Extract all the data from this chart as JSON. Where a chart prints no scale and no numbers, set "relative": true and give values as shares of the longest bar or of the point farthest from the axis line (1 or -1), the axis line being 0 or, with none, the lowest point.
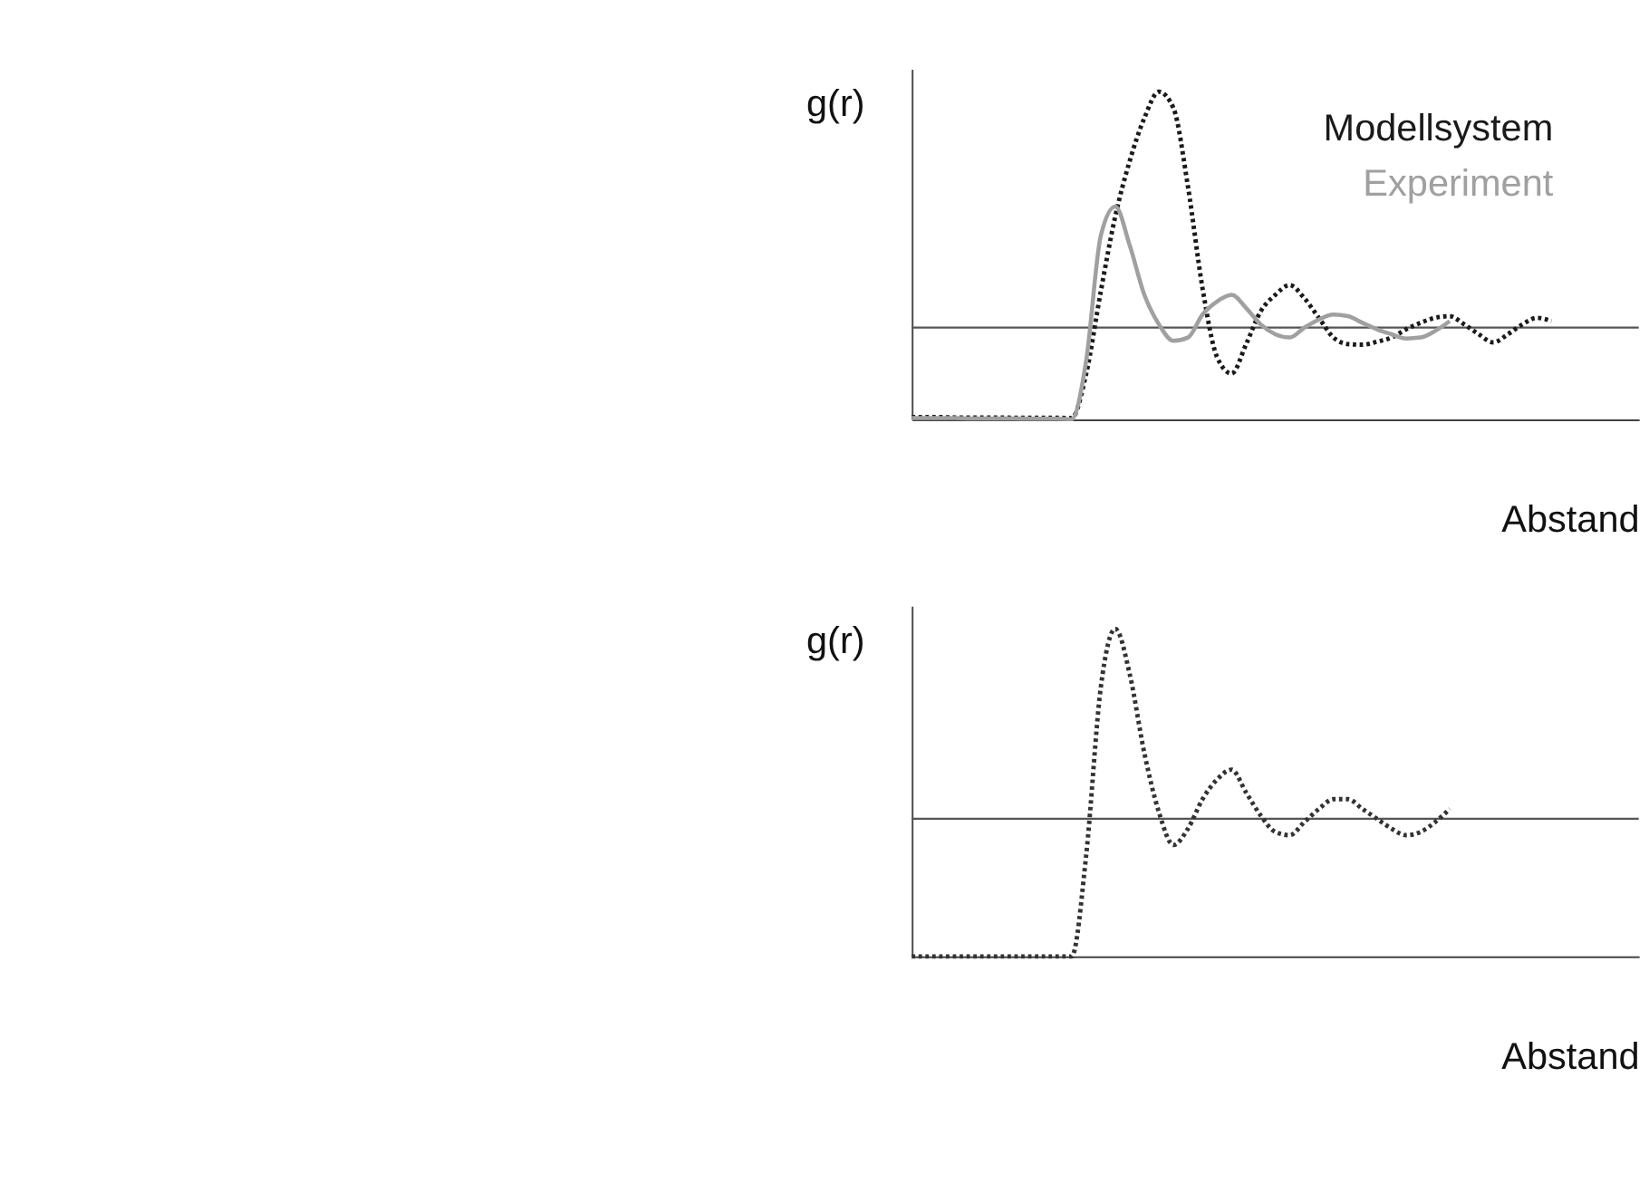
{
  "chart_data": [
    {
      "type": "line",
      "ylabel": "g(r)",
      "xlabel": "Abstand",
      "relative": true,
      "tick_labels": false,
      "grid": false,
      "marker": "none",
      "categories": [
        null,
        null,
        null,
        null,
        null,
        null,
        null,
        null,
        null,
        null,
        null,
        null,
        null,
        null,
        null,
        null,
        null,
        null,
        null,
        null,
        null,
        null,
        null,
        null,
        null,
        null,
        null,
        null,
        null,
        null,
        null,
        null,
        null,
        null,
        null,
        null,
        null,
        null,
        null,
        null,
        null,
        null,
        null,
        null,
        null,
        null,
        null,
        null,
        null,
        null,
        null
      ],
      "ref_lines": [
        {
          "axis": "y",
          "value": 0.28,
          "color": "#555555"
        }
      ],
      "series": [
        {
          "name": "Modellsystem",
          "color": "#1a1a1a",
          "line_style": "dotted",
          "values": [
            0.007,
            0.007,
            0.007,
            0.006,
            0.006,
            0.006,
            0.006,
            0.005,
            0.005,
            0.005,
            0.005,
            0.004,
            0.14,
            0.39,
            0.62,
            0.79,
            0.92,
            1.0,
            0.95,
            0.71,
            0.4,
            0.19,
            0.14,
            0.23,
            0.33,
            0.38,
            0.41,
            0.37,
            0.31,
            0.25,
            0.23,
            0.228,
            0.237,
            0.25,
            0.275,
            0.295,
            0.31,
            0.315,
            0.29,
            0.26,
            0.235,
            0.26,
            0.29,
            0.31,
            0.3,
            null,
            null,
            null,
            null,
            null,
            null
          ]
        },
        {
          "name": "Experiment",
          "color": "#a0a0a0",
          "line_style": "solid",
          "values": [
            0.004,
            0.004,
            0.004,
            0.004,
            0.003,
            0.003,
            0.003,
            0.003,
            0.002,
            0.002,
            0.002,
            0.001,
            0.18,
            0.56,
            0.65,
            0.53,
            0.38,
            0.29,
            0.24,
            0.25,
            0.32,
            0.36,
            0.38,
            0.34,
            0.29,
            0.26,
            0.25,
            0.28,
            0.305,
            0.32,
            0.315,
            0.295,
            0.275,
            0.26,
            0.247,
            0.25,
            0.27,
            0.3,
            null,
            null,
            null,
            null,
            null,
            null,
            null,
            null,
            null,
            null,
            null,
            null,
            null
          ]
        }
      ]
    },
    {
      "type": "line",
      "ylabel": "g(r)",
      "xlabel": "Abstand",
      "relative": true,
      "tick_labels": false,
      "grid": false,
      "marker": "none",
      "categories": [
        null,
        null,
        null,
        null,
        null,
        null,
        null,
        null,
        null,
        null,
        null,
        null,
        null,
        null,
        null,
        null,
        null,
        null,
        null,
        null,
        null,
        null,
        null,
        null,
        null,
        null,
        null,
        null,
        null,
        null,
        null,
        null,
        null,
        null,
        null,
        null,
        null,
        null,
        null,
        null,
        null,
        null,
        null,
        null,
        null,
        null,
        null,
        null,
        null,
        null,
        null
      ],
      "ref_lines": [
        {
          "axis": "y",
          "value": 0.42,
          "color": "#555555"
        }
      ],
      "series": [
        {
          "color": "#333333",
          "line_style": "dotted",
          "values": [
            0,
            0,
            0,
            0,
            0,
            0,
            0,
            0,
            0,
            0,
            0,
            0,
            0.31,
            0.82,
            1.0,
            0.86,
            0.62,
            0.44,
            0.34,
            0.39,
            0.48,
            0.54,
            0.57,
            0.5,
            0.43,
            0.38,
            0.37,
            0.41,
            0.45,
            0.48,
            0.48,
            0.45,
            0.42,
            0.39,
            0.37,
            0.38,
            0.41,
            0.45,
            null,
            null,
            null,
            null,
            null,
            null,
            null,
            null,
            null,
            null,
            null,
            null,
            null
          ]
        }
      ]
    }
  ]
}
